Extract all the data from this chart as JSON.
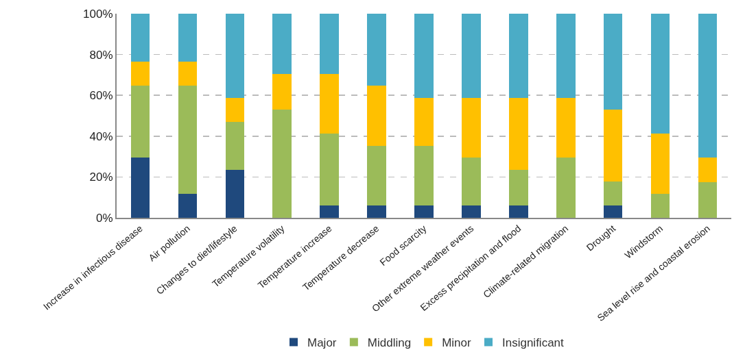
{
  "chart_data": {
    "type": "bar",
    "stacked": true,
    "categories": [
      "Increase in infectious disease",
      "Air pollution",
      "Changes to diet/lifestyle",
      "Temperature volatility",
      "Temperature increase",
      "Temperature decrease",
      "Food scarcity",
      "Other extreme weather events",
      "Excess precipitation and flood",
      "Climate-related migration",
      "Drought",
      "Windstorm",
      "Sea level rise and coastal erosion"
    ],
    "series": [
      {
        "name": "Major",
        "color": "#1f497d",
        "values": [
          29.4,
          11.8,
          23.5,
          0,
          5.9,
          5.9,
          5.9,
          5.9,
          5.9,
          0,
          5.9,
          0,
          0
        ]
      },
      {
        "name": "Middling",
        "color": "#9bbb59",
        "values": [
          35.3,
          52.9,
          23.5,
          52.9,
          35.3,
          29.4,
          29.4,
          23.5,
          17.6,
          29.4,
          11.8,
          11.8,
          17.6
        ]
      },
      {
        "name": "Minor",
        "color": "#ffc000",
        "values": [
          11.8,
          11.8,
          11.8,
          17.6,
          29.4,
          29.4,
          23.5,
          29.4,
          35.3,
          29.4,
          35.3,
          29.4,
          11.8
        ]
      },
      {
        "name": "Insignificant",
        "color": "#4bacc6",
        "values": [
          23.5,
          23.5,
          41.2,
          29.5,
          29.4,
          35.3,
          41.2,
          41.2,
          41.2,
          41.2,
          47.0,
          58.8,
          70.6
        ]
      }
    ],
    "ylim": [
      0,
      100
    ],
    "yticks": [
      {
        "value": 0,
        "label": "0%"
      },
      {
        "value": 20,
        "label": "20%"
      },
      {
        "value": 40,
        "label": "40%"
      },
      {
        "value": 60,
        "label": "60%"
      },
      {
        "value": 80,
        "label": "80%"
      },
      {
        "value": 100,
        "label": "100%"
      }
    ],
    "grid": "y",
    "legend": "bottom"
  }
}
